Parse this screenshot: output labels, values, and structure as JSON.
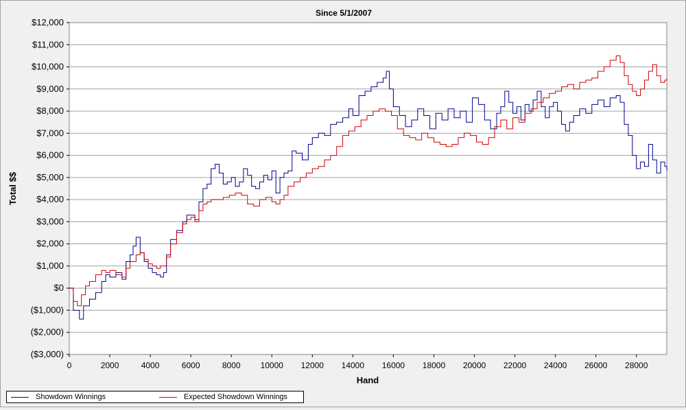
{
  "chart_data": {
    "type": "line",
    "title": "Since 5/1/2007",
    "xlabel": "Hand",
    "ylabel": "Total $$",
    "xlim": [
      0,
      29500
    ],
    "ylim": [
      -3000,
      12000
    ],
    "xticks": [
      0,
      2000,
      4000,
      6000,
      8000,
      10000,
      12000,
      14000,
      16000,
      18000,
      20000,
      22000,
      24000,
      26000,
      28000
    ],
    "yticks": [
      {
        "value": 12000,
        "label": "$12,000"
      },
      {
        "value": 11000,
        "label": "$11,000"
      },
      {
        "value": 10000,
        "label": "$10,000"
      },
      {
        "value": 9000,
        "label": "$9,000"
      },
      {
        "value": 8000,
        "label": "$8,000"
      },
      {
        "value": 7000,
        "label": "$7,000"
      },
      {
        "value": 6000,
        "label": "$6,000"
      },
      {
        "value": 5000,
        "label": "$5,000"
      },
      {
        "value": 4000,
        "label": "$4,000"
      },
      {
        "value": 3000,
        "label": "$3,000"
      },
      {
        "value": 2000,
        "label": "$2,000"
      },
      {
        "value": 1000,
        "label": "$1,000"
      },
      {
        "value": 0,
        "label": "$0"
      },
      {
        "value": -1000,
        "label": "($1,000)"
      },
      {
        "value": -2000,
        "label": "($2,000)"
      },
      {
        "value": -3000,
        "label": "($3,000)"
      }
    ],
    "grid": "horizontal",
    "legend_position": "bottom-left",
    "series": [
      {
        "name": "Showdown Winnings",
        "color": "#00008b",
        "x": [
          0,
          200,
          380,
          500,
          700,
          1000,
          1300,
          1600,
          1800,
          2000,
          2300,
          2600,
          2800,
          3000,
          3150,
          3300,
          3500,
          3700,
          3900,
          4100,
          4300,
          4500,
          4650,
          4800,
          5000,
          5300,
          5600,
          5800,
          6000,
          6200,
          6400,
          6600,
          6800,
          7000,
          7200,
          7400,
          7600,
          7800,
          8000,
          8200,
          8400,
          8600,
          8800,
          9000,
          9200,
          9400,
          9600,
          9800,
          10000,
          10200,
          10400,
          10600,
          10800,
          11000,
          11200,
          11500,
          11800,
          12000,
          12300,
          12600,
          12900,
          13200,
          13500,
          13800,
          14000,
          14300,
          14600,
          14900,
          15200,
          15500,
          15650,
          15800,
          16000,
          16300,
          16600,
          16900,
          17200,
          17500,
          17800,
          18100,
          18400,
          18700,
          19000,
          19300,
          19600,
          19900,
          20200,
          20500,
          20800,
          21100,
          21300,
          21500,
          21700,
          21900,
          22100,
          22300,
          22500,
          22700,
          22900,
          23100,
          23300,
          23500,
          23700,
          23900,
          24100,
          24300,
          24500,
          24700,
          24900,
          25200,
          25500,
          25800,
          26100,
          26400,
          26700,
          27000,
          27200,
          27400,
          27600,
          27800,
          28000,
          28200,
          28400,
          28600,
          28800,
          29000,
          29200,
          29400,
          29500
        ],
        "values": [
          0,
          -1000,
          -1000,
          -1400,
          -800,
          -500,
          -200,
          300,
          600,
          500,
          700,
          400,
          1200,
          1500,
          1900,
          2300,
          1600,
          1200,
          900,
          700,
          600,
          500,
          700,
          1500,
          2200,
          2600,
          3000,
          3300,
          3300,
          3100,
          3900,
          4500,
          4700,
          5400,
          5600,
          5200,
          4700,
          4800,
          5000,
          4600,
          4800,
          5400,
          5100,
          4600,
          4500,
          4800,
          5100,
          4900,
          5300,
          4300,
          5000,
          5200,
          5300,
          6200,
          6100,
          5800,
          6500,
          6800,
          7000,
          6900,
          7400,
          7500,
          7700,
          8100,
          7800,
          8700,
          8900,
          9100,
          9300,
          9500,
          9800,
          9000,
          8200,
          7800,
          7300,
          7600,
          8100,
          7800,
          7200,
          7900,
          7600,
          8100,
          7700,
          8000,
          7500,
          8600,
          8300,
          7600,
          7200,
          7900,
          8200,
          8900,
          8400,
          7900,
          8200,
          7600,
          8300,
          8000,
          8500,
          8900,
          8200,
          7700,
          8200,
          8400,
          8000,
          7400,
          7100,
          7500,
          7800,
          8100,
          7900,
          8300,
          8500,
          8200,
          8600,
          8700,
          8400,
          7400,
          6900,
          6000,
          5400,
          5700,
          5500,
          6500,
          5800,
          5200,
          5700,
          5500,
          5300
        ]
      },
      {
        "name": "Expected Showdown Winnings",
        "color": "#cc0000",
        "x": [
          0,
          200,
          400,
          600,
          800,
          1000,
          1300,
          1600,
          1800,
          2000,
          2300,
          2600,
          2800,
          3000,
          3300,
          3500,
          3700,
          3900,
          4100,
          4300,
          4500,
          4650,
          4800,
          5000,
          5300,
          5600,
          5800,
          6000,
          6200,
          6400,
          6600,
          6800,
          7000,
          7300,
          7600,
          7900,
          8200,
          8500,
          8800,
          9100,
          9400,
          9700,
          10000,
          10200,
          10400,
          10600,
          10800,
          11100,
          11400,
          11700,
          12000,
          12300,
          12600,
          12900,
          13200,
          13500,
          13800,
          14100,
          14400,
          14700,
          15000,
          15300,
          15600,
          15900,
          16200,
          16500,
          16800,
          17100,
          17400,
          17700,
          18000,
          18300,
          18600,
          18900,
          19200,
          19500,
          19800,
          20100,
          20400,
          20700,
          21000,
          21300,
          21600,
          21900,
          22200,
          22500,
          22800,
          23100,
          23400,
          23700,
          24000,
          24300,
          24600,
          24900,
          25200,
          25500,
          25800,
          26100,
          26400,
          26700,
          27000,
          27200,
          27400,
          27600,
          27800,
          28000,
          28200,
          28400,
          28600,
          28800,
          29000,
          29200,
          29400,
          29500
        ],
        "values": [
          0,
          -600,
          -800,
          -300,
          100,
          300,
          600,
          800,
          700,
          800,
          600,
          500,
          900,
          1200,
          1500,
          1600,
          1300,
          1100,
          1000,
          900,
          1000,
          1000,
          1400,
          2000,
          2500,
          2900,
          3100,
          3200,
          3000,
          3500,
          3800,
          3900,
          4000,
          4000,
          4100,
          4200,
          4300,
          4200,
          3800,
          3700,
          4000,
          4100,
          3900,
          3800,
          4000,
          4200,
          4600,
          4800,
          5000,
          5200,
          5400,
          5500,
          5800,
          6000,
          6400,
          6900,
          7100,
          7300,
          7600,
          7800,
          8000,
          8100,
          8000,
          7800,
          7200,
          6900,
          6800,
          6700,
          7000,
          6800,
          6600,
          6500,
          6400,
          6500,
          6800,
          7000,
          6900,
          6600,
          6500,
          6800,
          7300,
          7600,
          7200,
          7700,
          7500,
          7900,
          8100,
          8400,
          8600,
          8800,
          8900,
          9100,
          9200,
          9000,
          9300,
          9400,
          9500,
          9800,
          10000,
          10300,
          10500,
          10200,
          9600,
          9200,
          8900,
          8700,
          9000,
          9400,
          9800,
          10100,
          9600,
          9300,
          9400,
          9500
        ]
      }
    ]
  },
  "legend": {
    "items": [
      {
        "label": "Showdown Winnings",
        "color": "#00008b"
      },
      {
        "label": "Expected Showdown Winnings",
        "color": "#cc0000"
      }
    ]
  }
}
